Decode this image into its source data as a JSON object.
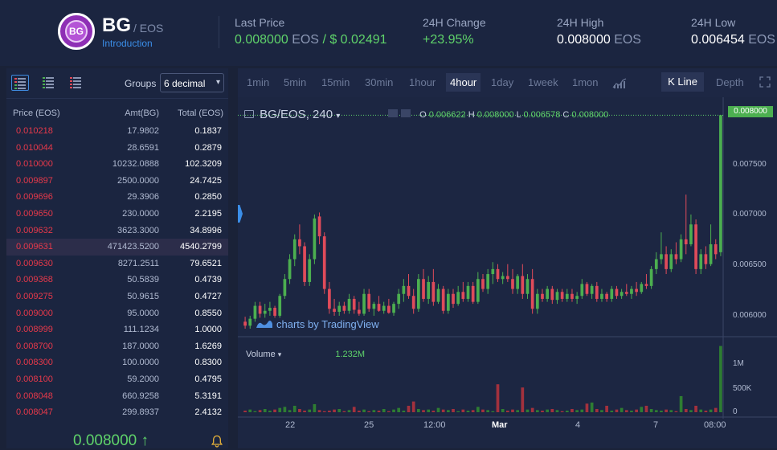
{
  "header": {
    "symbol": "BG",
    "quote": "/ EOS",
    "intro_link": "Introduction",
    "logo_text": "BG",
    "last_price": {
      "label": "Last Price",
      "value": "0.008000",
      "unit": "EOS",
      "usd": "/ $ 0.02491"
    },
    "change": {
      "label": "24H Change",
      "value": "+23.95%"
    },
    "high": {
      "label": "24H High",
      "value": "0.008000",
      "unit": "EOS"
    },
    "low": {
      "label": "24H Low",
      "value": "0.006454",
      "unit": "EOS"
    }
  },
  "orderbook": {
    "groups_label": "Groups",
    "groups_value": "6 decimal",
    "columns": [
      "Price (EOS)",
      "Amt(BG)",
      "Total (EOS)"
    ],
    "rows": [
      [
        "0.010218",
        "17.9802",
        "0.1837"
      ],
      [
        "0.010044",
        "28.6591",
        "0.2879"
      ],
      [
        "0.010000",
        "10232.0888",
        "102.3209"
      ],
      [
        "0.009897",
        "2500.0000",
        "24.7425"
      ],
      [
        "0.009696",
        "29.3906",
        "0.2850"
      ],
      [
        "0.009650",
        "230.0000",
        "2.2195"
      ],
      [
        "0.009632",
        "3623.3000",
        "34.8996"
      ],
      [
        "0.009631",
        "471423.5200",
        "4540.2799"
      ],
      [
        "0.009630",
        "8271.2511",
        "79.6521"
      ],
      [
        "0.009368",
        "50.5839",
        "0.4739"
      ],
      [
        "0.009275",
        "50.9615",
        "0.4727"
      ],
      [
        "0.009000",
        "95.0000",
        "0.8550"
      ],
      [
        "0.008999",
        "111.1234",
        "1.0000"
      ],
      [
        "0.008700",
        "187.0000",
        "1.6269"
      ],
      [
        "0.008300",
        "100.0000",
        "0.8300"
      ],
      [
        "0.008100",
        "59.2000",
        "0.4795"
      ],
      [
        "0.008048",
        "660.9258",
        "5.3191"
      ],
      [
        "0.008047",
        "299.8937",
        "2.4132"
      ]
    ],
    "last_price": "0.008000 ↑"
  },
  "toolbar": {
    "intervals": [
      "1min",
      "5min",
      "15min",
      "30min",
      "1hour",
      "4hour",
      "1day",
      "1week",
      "1mon"
    ],
    "active_interval": "4hour",
    "kline_label": "K Line",
    "depth_label": "Depth"
  },
  "chart": {
    "legend": "BG/EOS, 240",
    "o_label": "O",
    "o": "0.006622",
    "h_label": "H",
    "h": "0.008000",
    "l_label": "L",
    "l": "0.006578",
    "c_label": "C",
    "c": "0.008000",
    "watermark": "charts by TradingView",
    "volume_label": "Volume",
    "volume_value": "1.232M",
    "price_tag": "0.008000",
    "y_ticks": [
      "0.007500",
      "0.007000",
      "0.006500",
      "0.006000"
    ],
    "vol_ticks": [
      "1M",
      "500K",
      "0"
    ],
    "x_ticks": [
      "22",
      "25",
      "12:00",
      "Mar",
      "4",
      "7",
      "08:00"
    ],
    "colors": {
      "up": "#4caf50",
      "down": "#e04b5a"
    }
  },
  "chart_data": {
    "type": "candlestick",
    "title": "BG/EOS, 240",
    "ylim": [
      0.00585,
      0.0081
    ],
    "candles": [
      [
        0.00592,
        0.00597,
        0.00585,
        0.00588
      ],
      [
        0.00588,
        0.00598,
        0.00585,
        0.00595
      ],
      [
        0.00595,
        0.00612,
        0.00592,
        0.00608
      ],
      [
        0.00608,
        0.00612,
        0.00596,
        0.006
      ],
      [
        0.006,
        0.0061,
        0.00596,
        0.00603
      ],
      [
        0.00603,
        0.00612,
        0.00598,
        0.00606
      ],
      [
        0.00606,
        0.00608,
        0.00596,
        0.00598
      ],
      [
        0.00598,
        0.0062,
        0.00596,
        0.00618
      ],
      [
        0.00618,
        0.0064,
        0.00615,
        0.00635
      ],
      [
        0.00635,
        0.0066,
        0.0063,
        0.00655
      ],
      [
        0.00655,
        0.0068,
        0.00648,
        0.00675
      ],
      [
        0.00675,
        0.0069,
        0.0066,
        0.00668
      ],
      [
        0.00668,
        0.00672,
        0.00628,
        0.00632
      ],
      [
        0.00632,
        0.0066,
        0.00628,
        0.00655
      ],
      [
        0.00655,
        0.007,
        0.0065,
        0.00696
      ],
      [
        0.00698,
        0.00702,
        0.0067,
        0.00678
      ],
      [
        0.00678,
        0.00682,
        0.0062,
        0.00625
      ],
      [
        0.00625,
        0.00632,
        0.006,
        0.00605
      ],
      [
        0.00605,
        0.00615,
        0.00598,
        0.00602
      ],
      [
        0.00602,
        0.00612,
        0.00598,
        0.00608
      ],
      [
        0.00608,
        0.00612,
        0.006,
        0.00603
      ],
      [
        0.00603,
        0.0062,
        0.006,
        0.00615
      ],
      [
        0.00615,
        0.00618,
        0.006,
        0.00604
      ],
      [
        0.00604,
        0.00612,
        0.00598,
        0.006
      ],
      [
        0.006,
        0.00625,
        0.00598,
        0.0062
      ],
      [
        0.0062,
        0.00625,
        0.00602,
        0.00605
      ],
      [
        0.00605,
        0.00612,
        0.00598,
        0.0061
      ],
      [
        0.0061,
        0.00618,
        0.00602,
        0.00603
      ],
      [
        0.00603,
        0.00612,
        0.006,
        0.00608
      ],
      [
        0.00608,
        0.00615,
        0.006,
        0.00601
      ],
      [
        0.00601,
        0.00612,
        0.00598,
        0.0061
      ],
      [
        0.0061,
        0.00625,
        0.00605,
        0.0062
      ],
      [
        0.0062,
        0.00635,
        0.00612,
        0.00628
      ],
      [
        0.00628,
        0.0064,
        0.00615,
        0.00618
      ],
      [
        0.00618,
        0.00625,
        0.006,
        0.00605
      ],
      [
        0.00605,
        0.0064,
        0.00602,
        0.00635
      ],
      [
        0.00635,
        0.00645,
        0.00612,
        0.00615
      ],
      [
        0.00615,
        0.00638,
        0.0061,
        0.00632
      ],
      [
        0.00632,
        0.00645,
        0.00608,
        0.00612
      ],
      [
        0.00612,
        0.0063,
        0.0061,
        0.00625
      ],
      [
        0.00625,
        0.00628,
        0.006,
        0.00603
      ],
      [
        0.00603,
        0.00625,
        0.006,
        0.0062
      ],
      [
        0.0062,
        0.00625,
        0.00606,
        0.0061
      ],
      [
        0.0061,
        0.00628,
        0.00608,
        0.00622
      ],
      [
        0.00622,
        0.00632,
        0.00612,
        0.00615
      ],
      [
        0.00615,
        0.00632,
        0.00612,
        0.00628
      ],
      [
        0.00628,
        0.00632,
        0.0061,
        0.00612
      ],
      [
        0.00612,
        0.00642,
        0.0061,
        0.00635
      ],
      [
        0.00635,
        0.0064,
        0.00622,
        0.00625
      ],
      [
        0.00625,
        0.00645,
        0.0062,
        0.0064
      ],
      [
        0.0064,
        0.00652,
        0.0063,
        0.00645
      ],
      [
        0.00645,
        0.0065,
        0.00632,
        0.00635
      ],
      [
        0.00635,
        0.00642,
        0.0063,
        0.00638
      ],
      [
        0.00638,
        0.0065,
        0.00632,
        0.00635
      ],
      [
        0.00635,
        0.00645,
        0.0062,
        0.00625
      ],
      [
        0.00625,
        0.0064,
        0.0062,
        0.00638
      ],
      [
        0.00638,
        0.0065,
        0.00615,
        0.0062
      ],
      [
        0.0062,
        0.0064,
        0.00615,
        0.00635
      ],
      [
        0.00635,
        0.00645,
        0.006,
        0.00605
      ],
      [
        0.00605,
        0.00625,
        0.006,
        0.0062
      ],
      [
        0.0062,
        0.00625,
        0.00612,
        0.00615
      ],
      [
        0.00615,
        0.00628,
        0.00612,
        0.00625
      ],
      [
        0.00625,
        0.00628,
        0.0061,
        0.00614
      ],
      [
        0.00614,
        0.00625,
        0.0061,
        0.00622
      ],
      [
        0.00622,
        0.00625,
        0.00612,
        0.00615
      ],
      [
        0.00615,
        0.00625,
        0.00612,
        0.0062
      ],
      [
        0.0062,
        0.00625,
        0.00612,
        0.00615
      ],
      [
        0.00615,
        0.00622,
        0.0061,
        0.00618
      ],
      [
        0.00618,
        0.00635,
        0.00615,
        0.0063
      ],
      [
        0.0063,
        0.00632,
        0.00618,
        0.0062
      ],
      [
        0.0062,
        0.0063,
        0.00615,
        0.00628
      ],
      [
        0.00628,
        0.00632,
        0.00612,
        0.00615
      ],
      [
        0.00615,
        0.00625,
        0.00612,
        0.0062
      ],
      [
        0.0062,
        0.00622,
        0.00612,
        0.00615
      ],
      [
        0.00615,
        0.00628,
        0.00612,
        0.00625
      ],
      [
        0.00625,
        0.00628,
        0.00615,
        0.00618
      ],
      [
        0.00618,
        0.00625,
        0.00615,
        0.00622
      ],
      [
        0.00622,
        0.0063,
        0.00618,
        0.0062
      ],
      [
        0.0062,
        0.00628,
        0.00615,
        0.00625
      ],
      [
        0.00625,
        0.00632,
        0.00618,
        0.00622
      ],
      [
        0.00622,
        0.00632,
        0.0062,
        0.0063
      ],
      [
        0.0063,
        0.0064,
        0.00625,
        0.00628
      ],
      [
        0.00628,
        0.00648,
        0.00625,
        0.00645
      ],
      [
        0.00645,
        0.00662,
        0.0064,
        0.00655
      ],
      [
        0.00655,
        0.00682,
        0.0065,
        0.0066
      ],
      [
        0.0066,
        0.00668,
        0.0064,
        0.00645
      ],
      [
        0.00645,
        0.00665,
        0.00642,
        0.0066
      ],
      [
        0.0066,
        0.00672,
        0.0065,
        0.00655
      ],
      [
        0.00655,
        0.0068,
        0.00652,
        0.00675
      ],
      [
        0.00675,
        0.0072,
        0.0066,
        0.0067
      ],
      [
        0.0067,
        0.007,
        0.00668,
        0.0069
      ],
      [
        0.0069,
        0.00695,
        0.0064,
        0.00645
      ],
      [
        0.00645,
        0.00665,
        0.0064,
        0.0066
      ],
      [
        0.0066,
        0.00668,
        0.00645,
        0.0065
      ],
      [
        0.0065,
        0.0069,
        0.00648,
        0.0067
      ],
      [
        0.0067,
        0.00675,
        0.00655,
        0.0066
      ],
      [
        0.00662,
        0.008,
        0.00658,
        0.008
      ]
    ],
    "volume": [
      0.03,
      0.05,
      0.02,
      0.04,
      0.06,
      0.03,
      0.05,
      0.08,
      0.1,
      0.04,
      0.12,
      0.06,
      0.03,
      0.05,
      0.15,
      0.04,
      0.02,
      0.03,
      0.05,
      0.06,
      0.02,
      0.04,
      0.1,
      0.03,
      0.05,
      0.02,
      0.04,
      0.03,
      0.06,
      0.02,
      0.05,
      0.08,
      0.03,
      0.12,
      0.2,
      0.06,
      0.04,
      0.05,
      0.03,
      0.08,
      0.05,
      0.04,
      0.06,
      0.02,
      0.05,
      0.03,
      0.04,
      0.1,
      0.05,
      0.04,
      0.02,
      0.52,
      0.06,
      0.03,
      0.05,
      0.04,
      0.46,
      0.05,
      0.08,
      0.04,
      0.03,
      0.05,
      0.06,
      0.04,
      0.02,
      0.03,
      0.06,
      0.04,
      0.05,
      0.16,
      0.18,
      0.06,
      0.04,
      0.12,
      0.03,
      0.05,
      0.08,
      0.04,
      0.03,
      0.05,
      0.1,
      0.12,
      0.06,
      0.04,
      0.03,
      0.05,
      0.04,
      0.02,
      0.3,
      0.06,
      0.04,
      0.12,
      0.05,
      0.03,
      0.05,
      0.08,
      1.232
    ]
  }
}
